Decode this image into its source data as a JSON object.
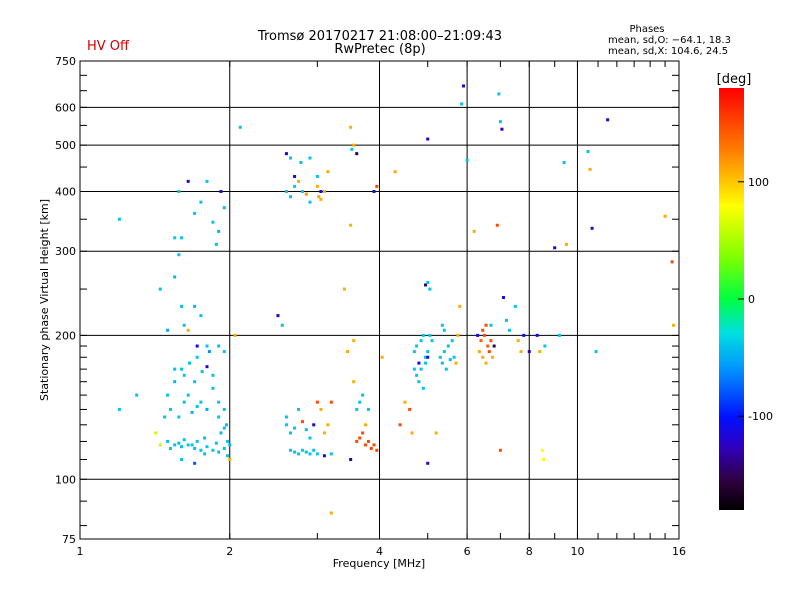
{
  "header": {
    "hv_status": "HV Off",
    "hv_color": "#d00000",
    "title_line1": "Tromsø 20170217 21:08:00–21:09:43",
    "title_line2": "RwPretec (8p)"
  },
  "phases_box": {
    "label": "Phases",
    "line1": "mean, sd,O: −64.1, 18.3",
    "line2": "mean, sd,X: 104.6, 24.5"
  },
  "colorbar": {
    "unit_label": "[deg]",
    "min": -180,
    "max": 180,
    "ticks": [
      {
        "value": 100,
        "label": "100"
      },
      {
        "value": 0,
        "label": "0"
      },
      {
        "value": -100,
        "label": "-100"
      }
    ]
  },
  "chart_data": {
    "type": "scatter",
    "title": "Tromsø 20170217 21:08:00–21:09:43",
    "subtitle": "RwPretec (8p)",
    "xlabel": "Frequency [MHz]",
    "ylabel": "Stationary phase Virtual Height [km]",
    "xscale": "log",
    "yscale": "log",
    "xlim": [
      1,
      16
    ],
    "ylim": [
      75,
      750
    ],
    "xticks": [
      {
        "value": 1,
        "label": "1"
      },
      {
        "value": 2,
        "label": "2"
      },
      {
        "value": 4,
        "label": "4"
      },
      {
        "value": 6,
        "label": "6"
      },
      {
        "value": 8,
        "label": "8"
      },
      {
        "value": 10,
        "label": "10"
      },
      {
        "value": 16,
        "label": "16"
      }
    ],
    "yticks": [
      {
        "value": 75,
        "label": "75"
      },
      {
        "value": 100,
        "label": "100"
      },
      {
        "value": 200,
        "label": "200"
      },
      {
        "value": 300,
        "label": "300"
      },
      {
        "value": 400,
        "label": "400"
      },
      {
        "value": 500,
        "label": "500"
      },
      {
        "value": 600,
        "label": "600"
      },
      {
        "value": 750,
        "label": "750"
      }
    ],
    "grid": true,
    "color_variable": "phase [deg]",
    "color_range": [
      -180,
      180
    ],
    "points": [
      [
        1.2,
        350,
        -40
      ],
      [
        1.2,
        140,
        -40
      ],
      [
        1.45,
        250,
        -40
      ],
      [
        1.5,
        205,
        -50
      ],
      [
        1.55,
        265,
        -45
      ],
      [
        1.6,
        230,
        -40
      ],
      [
        1.62,
        210,
        -40
      ],
      [
        1.58,
        295,
        -40
      ],
      [
        1.7,
        230,
        -45
      ],
      [
        1.65,
        205,
        110
      ],
      [
        1.75,
        220,
        -40
      ],
      [
        1.8,
        190,
        -40
      ],
      [
        1.82,
        185,
        -60
      ],
      [
        1.55,
        320,
        -40
      ],
      [
        1.58,
        400,
        -40
      ],
      [
        1.65,
        420,
        -120
      ],
      [
        1.7,
        360,
        -40
      ],
      [
        1.75,
        380,
        -40
      ],
      [
        1.8,
        420,
        -40
      ],
      [
        1.85,
        345,
        -40
      ],
      [
        1.9,
        330,
        -45
      ],
      [
        1.92,
        400,
        -110
      ],
      [
        1.95,
        370,
        -40
      ],
      [
        1.88,
        310,
        -40
      ],
      [
        1.6,
        320,
        -40
      ],
      [
        1.5,
        150,
        -40
      ],
      [
        1.55,
        160,
        -45
      ],
      [
        1.6,
        170,
        -40
      ],
      [
        1.65,
        150,
        -40
      ],
      [
        1.7,
        160,
        -40
      ],
      [
        1.75,
        145,
        -40
      ],
      [
        1.8,
        140,
        -50
      ],
      [
        1.85,
        155,
        -40
      ],
      [
        1.9,
        145,
        -40
      ],
      [
        1.95,
        140,
        -40
      ],
      [
        1.52,
        140,
        -40
      ],
      [
        1.58,
        135,
        -40
      ],
      [
        1.62,
        145,
        -40
      ],
      [
        1.68,
        138,
        -45
      ],
      [
        1.72,
        142,
        -40
      ],
      [
        1.48,
        135,
        -40
      ],
      [
        1.5,
        120,
        -40
      ],
      [
        1.55,
        118,
        -40
      ],
      [
        1.6,
        117,
        -40
      ],
      [
        1.65,
        118,
        -40
      ],
      [
        1.7,
        116,
        -40
      ],
      [
        1.75,
        115,
        -40
      ],
      [
        1.8,
        117,
        -40
      ],
      [
        1.85,
        115,
        -40
      ],
      [
        1.9,
        114,
        -40
      ],
      [
        1.95,
        116,
        -40
      ],
      [
        1.98,
        120,
        -40
      ],
      [
        2.0,
        118,
        -45
      ],
      [
        1.52,
        116,
        -40
      ],
      [
        1.58,
        119,
        -40
      ],
      [
        1.62,
        121,
        -40
      ],
      [
        1.68,
        118,
        -40
      ],
      [
        1.72,
        120,
        -40
      ],
      [
        1.78,
        122,
        -40
      ],
      [
        1.88,
        119,
        -40
      ],
      [
        1.92,
        125,
        -40
      ],
      [
        1.97,
        130,
        -40
      ],
      [
        1.9,
        135,
        -40
      ],
      [
        1.95,
        128,
        -40
      ],
      [
        1.45,
        118,
        60
      ],
      [
        1.6,
        110,
        -40
      ],
      [
        1.7,
        108,
        -80
      ],
      [
        1.78,
        113,
        -40
      ],
      [
        1.98,
        112,
        -40
      ],
      [
        2.0,
        110,
        110
      ],
      [
        1.55,
        170,
        -40
      ],
      [
        1.62,
        165,
        -40
      ],
      [
        1.66,
        175,
        -40
      ],
      [
        1.72,
        180,
        -40
      ],
      [
        1.76,
        168,
        -40
      ],
      [
        1.8,
        172,
        -120
      ],
      [
        1.85,
        165,
        -40
      ],
      [
        1.9,
        190,
        -40
      ],
      [
        1.95,
        185,
        -40
      ],
      [
        1.72,
        190,
        -110
      ],
      [
        2.1,
        545,
        -40
      ],
      [
        2.05,
        200,
        110
      ],
      [
        2.5,
        220,
        -120
      ],
      [
        2.55,
        210,
        -40
      ],
      [
        2.6,
        480,
        -120
      ],
      [
        2.65,
        470,
        -40
      ],
      [
        2.7,
        410,
        -40
      ],
      [
        2.75,
        420,
        110
      ],
      [
        2.8,
        400,
        -40
      ],
      [
        2.85,
        395,
        120
      ],
      [
        2.9,
        380,
        -40
      ],
      [
        2.6,
        400,
        -40
      ],
      [
        2.65,
        390,
        -40
      ],
      [
        2.7,
        430,
        -110
      ],
      [
        2.78,
        460,
        -40
      ],
      [
        2.9,
        470,
        -40
      ],
      [
        3.0,
        410,
        110
      ],
      [
        3.02,
        390,
        115
      ],
      [
        3.05,
        385,
        110
      ],
      [
        3.1,
        400,
        110
      ],
      [
        3.15,
        440,
        110
      ],
      [
        3.0,
        430,
        -40
      ],
      [
        3.05,
        400,
        -110
      ],
      [
        2.6,
        130,
        -40
      ],
      [
        2.65,
        125,
        -40
      ],
      [
        2.7,
        128,
        -40
      ],
      [
        2.75,
        140,
        -40
      ],
      [
        2.8,
        132,
        150
      ],
      [
        2.85,
        127,
        -40
      ],
      [
        2.9,
        122,
        -40
      ],
      [
        2.95,
        130,
        -110
      ],
      [
        3.0,
        145,
        150
      ],
      [
        3.05,
        140,
        110
      ],
      [
        3.1,
        125,
        110
      ],
      [
        3.15,
        130,
        110
      ],
      [
        3.2,
        145,
        150
      ],
      [
        2.65,
        115,
        -40
      ],
      [
        2.7,
        114,
        -40
      ],
      [
        2.75,
        113,
        -40
      ],
      [
        2.8,
        115,
        -40
      ],
      [
        2.85,
        114,
        -40
      ],
      [
        2.9,
        113,
        -40
      ],
      [
        2.95,
        115,
        -40
      ],
      [
        3.0,
        113,
        -40
      ],
      [
        3.1,
        112,
        -110
      ],
      [
        3.2,
        113,
        -40
      ],
      [
        2.6,
        135,
        -40
      ],
      [
        3.2,
        85,
        110
      ],
      [
        3.4,
        250,
        110
      ],
      [
        3.5,
        545,
        110
      ],
      [
        3.52,
        490,
        -40
      ],
      [
        3.55,
        500,
        110
      ],
      [
        3.6,
        480,
        -150
      ],
      [
        3.5,
        340,
        110
      ],
      [
        3.55,
        195,
        110
      ],
      [
        3.45,
        185,
        110
      ],
      [
        3.5,
        110,
        -130
      ],
      [
        3.55,
        160,
        110
      ],
      [
        3.6,
        140,
        -40
      ],
      [
        3.65,
        145,
        -40
      ],
      [
        3.7,
        150,
        -40
      ],
      [
        3.6,
        120,
        150
      ],
      [
        3.65,
        122,
        150
      ],
      [
        3.7,
        125,
        150
      ],
      [
        3.75,
        118,
        150
      ],
      [
        3.8,
        120,
        150
      ],
      [
        3.85,
        116,
        150
      ],
      [
        3.9,
        118,
        150
      ],
      [
        3.95,
        115,
        150
      ],
      [
        3.75,
        130,
        110
      ],
      [
        3.8,
        140,
        -40
      ],
      [
        3.9,
        400,
        -120
      ],
      [
        3.95,
        410,
        150
      ],
      [
        4.05,
        180,
        110
      ],
      [
        4.3,
        440,
        110
      ],
      [
        4.4,
        130,
        150
      ],
      [
        4.5,
        145,
        110
      ],
      [
        4.6,
        140,
        150
      ],
      [
        4.65,
        125,
        110
      ],
      [
        4.7,
        185,
        -40
      ],
      [
        4.75,
        190,
        -40
      ],
      [
        4.8,
        175,
        -110
      ],
      [
        4.85,
        195,
        -40
      ],
      [
        4.9,
        200,
        -40
      ],
      [
        4.95,
        180,
        -40
      ],
      [
        4.7,
        170,
        -40
      ],
      [
        4.75,
        165,
        -40
      ],
      [
        4.8,
        160,
        -40
      ],
      [
        4.85,
        170,
        -40
      ],
      [
        4.9,
        155,
        -40
      ],
      [
        4.95,
        175,
        -40
      ],
      [
        5.0,
        180,
        -100
      ],
      [
        5.05,
        200,
        -40
      ],
      [
        5.1,
        195,
        -40
      ],
      [
        5.0,
        185,
        -40
      ],
      [
        4.95,
        255,
        -150
      ],
      [
        5.0,
        258,
        -40
      ],
      [
        5.05,
        250,
        -40
      ],
      [
        5.0,
        515,
        -120
      ],
      [
        5.0,
        108,
        -120
      ],
      [
        5.2,
        125,
        110
      ],
      [
        5.3,
        180,
        -40
      ],
      [
        5.35,
        175,
        -40
      ],
      [
        5.4,
        185,
        -40
      ],
      [
        5.45,
        170,
        -40
      ],
      [
        5.5,
        190,
        -40
      ],
      [
        5.55,
        178,
        -40
      ],
      [
        5.6,
        195,
        -40
      ],
      [
        5.65,
        180,
        -40
      ],
      [
        5.7,
        175,
        110
      ],
      [
        5.75,
        200,
        110
      ],
      [
        5.8,
        230,
        110
      ],
      [
        5.35,
        210,
        -40
      ],
      [
        5.4,
        205,
        -40
      ],
      [
        5.9,
        665,
        -110
      ],
      [
        5.85,
        610,
        -40
      ],
      [
        6.0,
        465,
        -40
      ],
      [
        6.2,
        330,
        110
      ],
      [
        6.3,
        200,
        -110
      ],
      [
        6.35,
        185,
        110
      ],
      [
        6.4,
        195,
        140
      ],
      [
        6.45,
        205,
        150
      ],
      [
        6.5,
        200,
        150
      ],
      [
        6.55,
        210,
        150
      ],
      [
        6.6,
        190,
        140
      ],
      [
        6.65,
        185,
        150
      ],
      [
        6.7,
        195,
        150
      ],
      [
        6.75,
        180,
        110
      ],
      [
        6.8,
        190,
        -150
      ],
      [
        6.45,
        180,
        110
      ],
      [
        6.55,
        175,
        110
      ],
      [
        6.7,
        210,
        -40
      ],
      [
        6.9,
        340,
        150
      ],
      [
        7.0,
        560,
        -40
      ],
      [
        7.05,
        540,
        -120
      ],
      [
        6.95,
        640,
        -40
      ],
      [
        7.1,
        240,
        -110
      ],
      [
        7.2,
        215,
        -40
      ],
      [
        7.3,
        205,
        -40
      ],
      [
        7.0,
        115,
        150
      ],
      [
        7.5,
        230,
        -40
      ],
      [
        7.6,
        195,
        110
      ],
      [
        7.7,
        185,
        110
      ],
      [
        7.8,
        200,
        -110
      ],
      [
        8.0,
        185,
        -130
      ],
      [
        8.3,
        200,
        -110
      ],
      [
        8.4,
        185,
        110
      ],
      [
        8.5,
        115,
        80
      ],
      [
        8.55,
        110,
        80
      ],
      [
        8.6,
        190,
        -40
      ],
      [
        9.0,
        305,
        -120
      ],
      [
        9.4,
        460,
        -40
      ],
      [
        9.5,
        310,
        110
      ],
      [
        10.5,
        485,
        -40
      ],
      [
        10.6,
        445,
        110
      ],
      [
        10.7,
        335,
        -110
      ],
      [
        10.9,
        185,
        -40
      ],
      [
        11.5,
        565,
        -120
      ],
      [
        15.0,
        355,
        110
      ],
      [
        15.5,
        285,
        150
      ],
      [
        15.6,
        210,
        110
      ],
      [
        9.2,
        200,
        -40
      ],
      [
        1.3,
        150,
        -40
      ],
      [
        1.42,
        125,
        60
      ]
    ]
  }
}
